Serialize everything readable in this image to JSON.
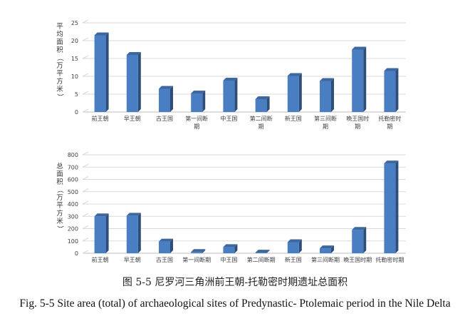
{
  "chart_data": [
    {
      "type": "bar",
      "ylabel": "平均面积（万平方米）",
      "categories": [
        "前王朝",
        "早王朝",
        "古王国",
        "第一间断期",
        "中王国",
        "第二间断期",
        "新王国",
        "第三间断期",
        "晚王国时期",
        "托勒密时期"
      ],
      "values": [
        21.5,
        16,
        6.5,
        5.2,
        8.8,
        3.6,
        10.1,
        8.7,
        17.5,
        11.5
      ],
      "ylim": [
        0,
        25
      ],
      "yticks": [
        "0",
        "5",
        "10",
        "15",
        "20",
        "25"
      ],
      "grid": true,
      "bar_color": "#4a7ec2"
    },
    {
      "type": "bar",
      "ylabel": "总面积（万平方米）",
      "categories": [
        "前王朝",
        "早王朝",
        "古王国",
        "第一间断期",
        "中王国",
        "第二间断期",
        "新王国",
        "第三间断期",
        "晚王国时期",
        "托勒密时期"
      ],
      "values": [
        300,
        305,
        95,
        10,
        50,
        5,
        90,
        40,
        190,
        730
      ],
      "ylim": [
        0,
        800
      ],
      "yticks": [
        "0",
        "100",
        "200",
        "300",
        "400",
        "500",
        "600",
        "700",
        "800"
      ],
      "grid": true,
      "bar_color": "#4a7ec2"
    }
  ],
  "caption": {
    "cn": "图 5-5  尼罗河三角洲前王朝-托勒密时期遗址总面积",
    "en": "Fig. 5-5 Site area (total) of archaeological sites of Predynastic- Ptolemaic period in the Nile Delta"
  }
}
